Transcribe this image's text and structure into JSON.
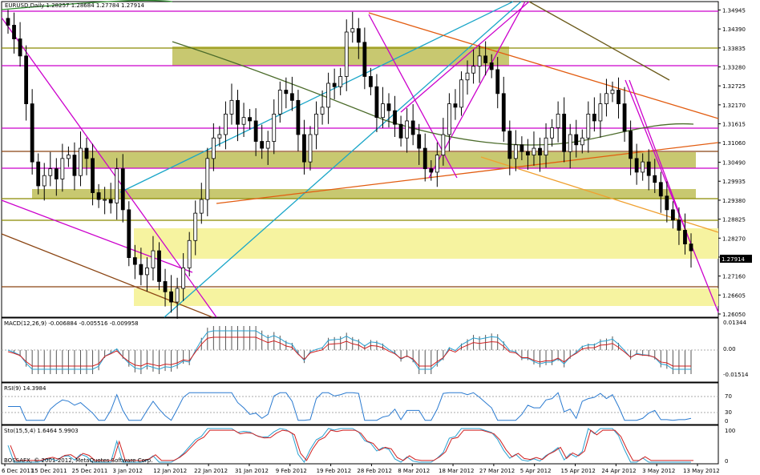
{
  "chart_data": {
    "type": "candlestick",
    "symbol_header": "EURUSD,Daily  1.28257 1.28684 1.27784 1.27914",
    "current_price_label": "1.27914",
    "watermark": "BOSSAFX, © 2001-2012, MetaQuotes Software Corp.",
    "price_axis": {
      "range": [
        1.2605,
        1.3505
      ],
      "ticks": [
        "1.34945",
        "1.34390",
        "1.33835",
        "1.33280",
        "1.32725",
        "1.32170",
        "1.31615",
        "1.31060",
        "1.30490",
        "1.29935",
        "1.29380",
        "1.28825",
        "1.28270",
        "1.27715",
        "1.27160",
        "1.26605",
        "1.26050"
      ]
    },
    "time_axis": [
      "6 Dec 2011",
      "15 Dec 2011",
      "25 Dec 2011",
      "3 Jan 2012",
      "12 Jan 2012",
      "22 Jan 2012",
      "31 Jan 2012",
      "9 Feb 2012",
      "19 Feb 2012",
      "28 Feb 2012",
      "8 Mar 2012",
      "18 Mar 2012",
      "27 Mar 2012",
      "5 Apr 2012",
      "15 Apr 2012",
      "24 Apr 2012",
      "3 May 2012",
      "13 May 2012"
    ],
    "candles_close": [
      1.345,
      1.341,
      1.336,
      1.322,
      1.305,
      1.298,
      1.301,
      1.303,
      1.3,
      1.306,
      1.307,
      1.301,
      1.309,
      1.306,
      1.296,
      1.294,
      1.294,
      1.293,
      1.303,
      1.291,
      1.277,
      1.275,
      1.272,
      1.274,
      1.279,
      1.27,
      1.267,
      1.264,
      1.268,
      1.274,
      1.282,
      1.29,
      1.294,
      1.306,
      1.312,
      1.313,
      1.319,
      1.323,
      1.316,
      1.318,
      1.317,
      1.311,
      1.309,
      1.311,
      1.319,
      1.326,
      1.325,
      1.323,
      1.313,
      1.305,
      1.313,
      1.319,
      1.321,
      1.328,
      1.327,
      1.33,
      1.343,
      1.344,
      1.34,
      1.33,
      1.327,
      1.318,
      1.322,
      1.32,
      1.316,
      1.312,
      1.317,
      1.313,
      1.309,
      1.303,
      1.302,
      1.307,
      1.313,
      1.322,
      1.321,
      1.329,
      1.331,
      1.333,
      1.336,
      1.334,
      1.332,
      1.325,
      1.314,
      1.306,
      1.31,
      1.308,
      1.307,
      1.309,
      1.307,
      1.312,
      1.315,
      1.319,
      1.308,
      1.313,
      1.31,
      1.312,
      1.319,
      1.317,
      1.322,
      1.325,
      1.326,
      1.322,
      1.314,
      1.306,
      1.302,
      1.305,
      1.301,
      1.299,
      1.295,
      1.291,
      1.288,
      1.285,
      1.281,
      1.279
    ],
    "indicators": [
      {
        "label": "MACD(12,26,9) -0.006884 -0.005516 -0.009958",
        "ticks": [
          "0.01344",
          "0.00",
          "-0.01514"
        ]
      },
      {
        "label": "RSI(9) 14.3984",
        "ticks": [
          "70",
          "30",
          "0"
        ]
      },
      {
        "label": "Sto(15,5,4) 1.6464 5.9903",
        "ticks": [
          "100",
          "0"
        ]
      }
    ]
  }
}
